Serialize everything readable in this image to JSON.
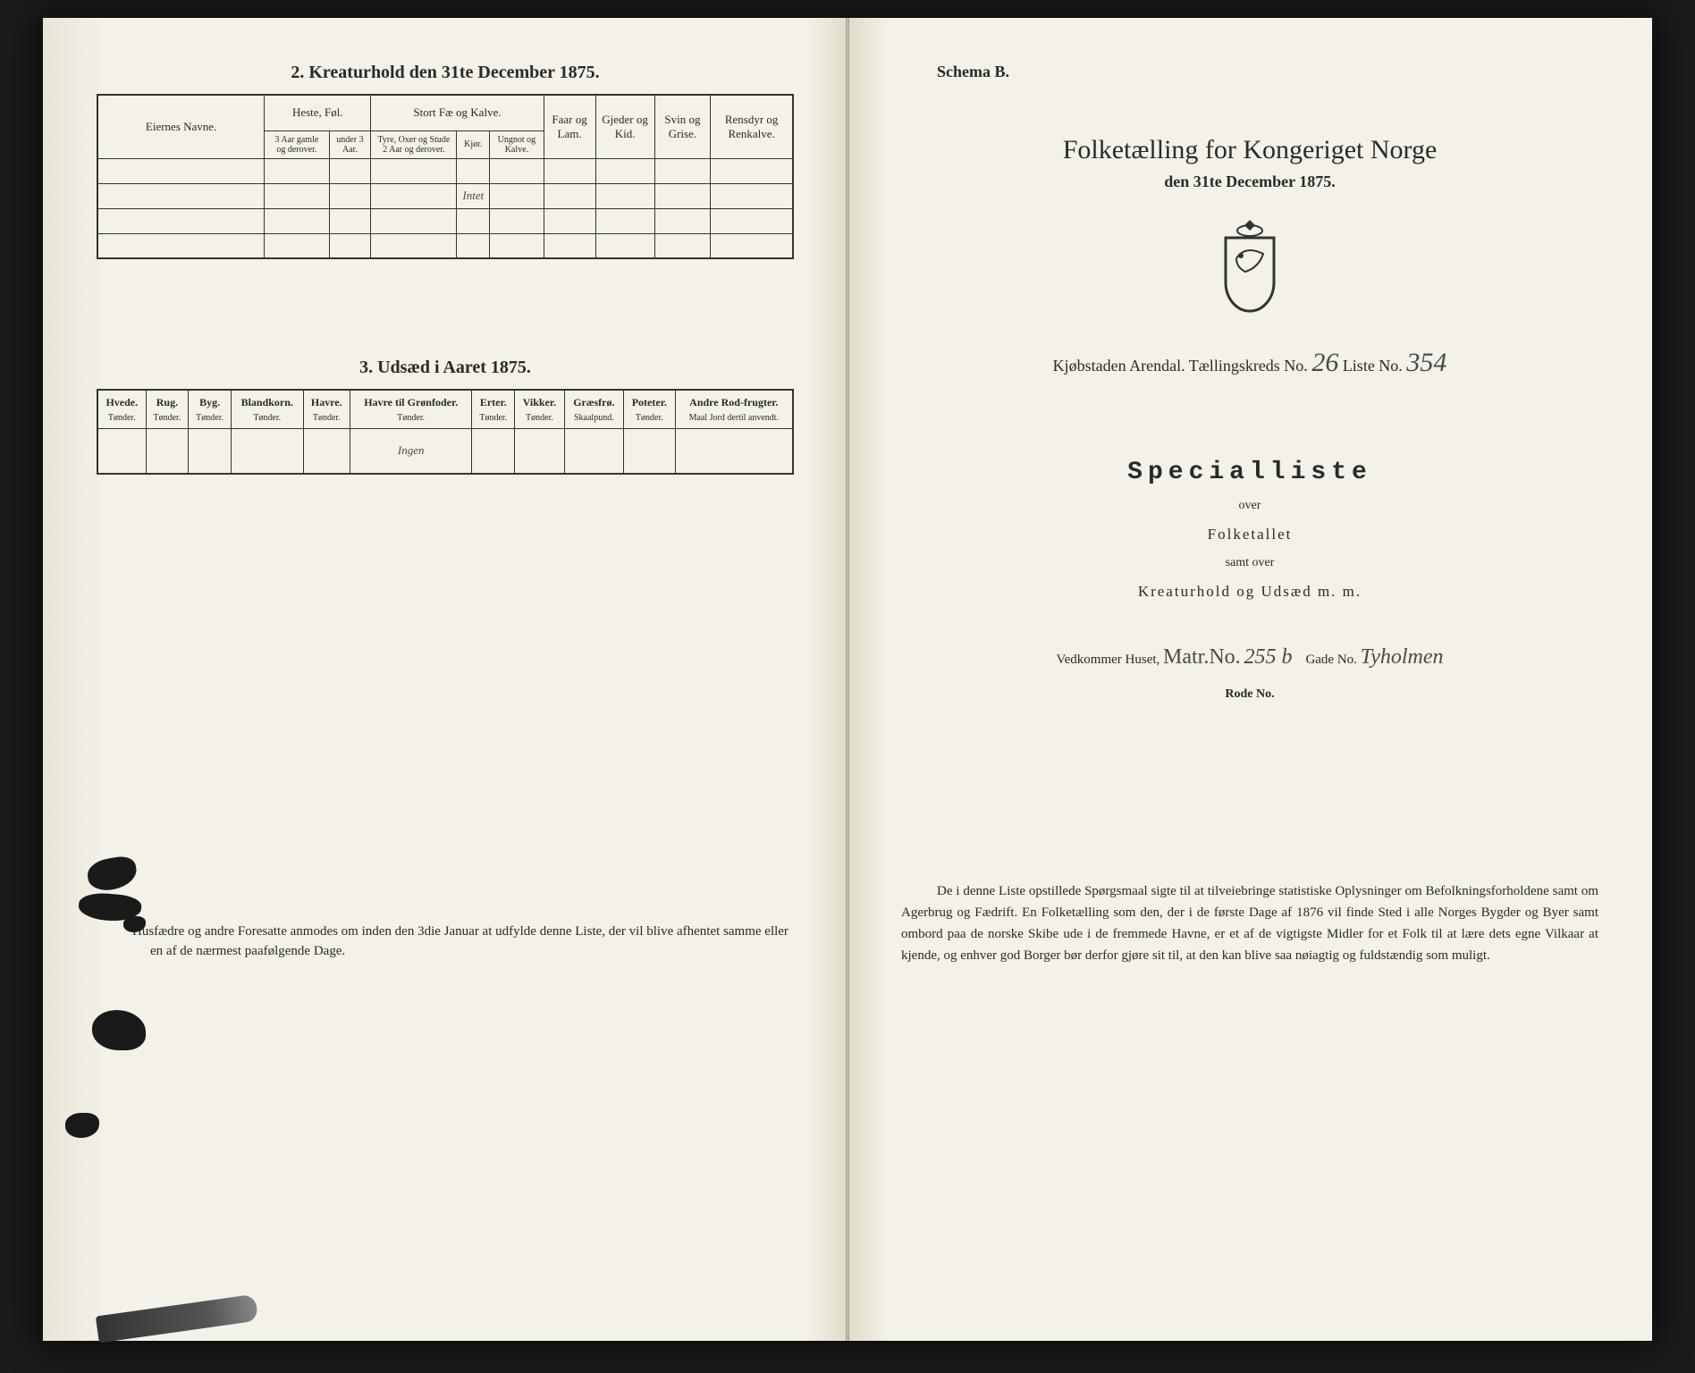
{
  "left": {
    "section2_title": "2.  Kreaturhold den 31te December 1875.",
    "table2": {
      "col_owner": "Eiernes Navne.",
      "grp_heste": "Heste, Føl.",
      "heste_a": "3 Aar gamle og derover.",
      "heste_b": "under 3 Aar.",
      "grp_stort": "Stort Fæ og Kalve.",
      "stort_a": "Tyre, Oxer og Stude 2 Aar og derover.",
      "stort_b": "Kjør.",
      "stort_c": "Ungnot og Kalve.",
      "col_faar": "Faar og Lam.",
      "col_gjeder": "Gjeder og Kid.",
      "col_svin": "Svin og Grise.",
      "col_rensdyr": "Rensdyr og Renkalve.",
      "hand_entry": "Intet"
    },
    "section3_title": "3.  Udsæd i Aaret 1875.",
    "table3": {
      "cols": [
        {
          "h": "Hvede.",
          "u": "Tønder."
        },
        {
          "h": "Rug.",
          "u": "Tønder."
        },
        {
          "h": "Byg.",
          "u": "Tønder."
        },
        {
          "h": "Blandkorn.",
          "u": "Tønder."
        },
        {
          "h": "Havre.",
          "u": "Tønder."
        },
        {
          "h": "Havre til Grønfoder.",
          "u": "Tønder."
        },
        {
          "h": "Erter.",
          "u": "Tønder."
        },
        {
          "h": "Vikker.",
          "u": "Tønder."
        },
        {
          "h": "Græsfrø.",
          "u": "Skaalpund."
        },
        {
          "h": "Poteter.",
          "u": "Tønder."
        },
        {
          "h": "Andre Rod-frugter.",
          "u": "Maal Jord dertil anvendt."
        }
      ],
      "hand_entry": "Ingen"
    },
    "footnote": "Husfædre og andre Foresatte anmodes om inden den 3die Januar at udfylde denne Liste, der vil blive afhentet samme eller en af de nærmest paafølgende Dage."
  },
  "right": {
    "schema": "Schema B.",
    "title": "Folketælling for Kongeriget Norge",
    "subtitle": "den 31te December 1875.",
    "kjob_label": "Kjøbstaden Arendal.    Tællingskreds No.",
    "kreds_no": "26",
    "liste_label": "   Liste No.",
    "liste_no": "354",
    "special": "Specialliste",
    "over": "over",
    "folketallet": "Folketallet",
    "samt": "samt over",
    "kreatur": "Kreaturhold og Udsæd m. m.",
    "ved_label": "Vedkommer Huset,",
    "ved_matr_label": "Matr.No.",
    "ved_matr": "255 b",
    "ved_gade_label": "Gade No.",
    "ved_gade": "Tyholmen",
    "rode": "Rode No.",
    "para": "De i denne Liste opstillede Spørgsmaal sigte til at tilveiebringe statistiske Oplysninger om Befolkningsforholdene samt om Agerbrug og Fædrift.  En Folketælling som den, der i de første Dage af 1876 vil finde Sted i alle Norges Bygder og Byer samt ombord paa de norske Skibe ude i de fremmede Havne, er et af de vigtigste Midler for et Folk til at lære dets egne Vilkaar at kjende, og enhver god Borger bør derfor gjøre sit til, at den kan blive saa nøiagtig og fuldstændig som muligt."
  },
  "colors": {
    "ink": "#2a2a2a",
    "paper": "#f4f1e8"
  }
}
